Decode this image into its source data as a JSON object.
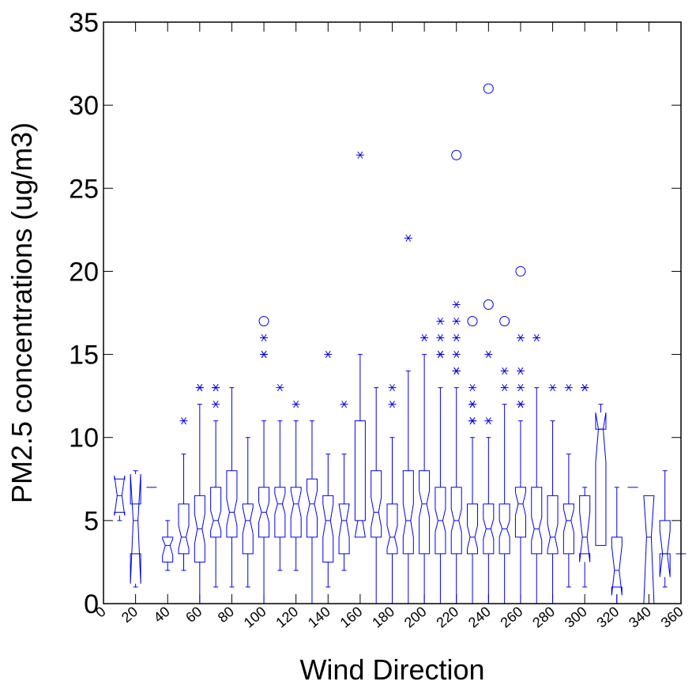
{
  "chart_data": {
    "type": "box",
    "xlabel": "Wind Direction",
    "ylabel": "PM2.5 concentrations (ug/m3)",
    "xlim": [
      0,
      360
    ],
    "ylim": [
      0,
      35
    ],
    "xticks": [
      0,
      20,
      40,
      60,
      80,
      100,
      120,
      140,
      160,
      180,
      200,
      220,
      240,
      260,
      280,
      300,
      320,
      340,
      360
    ],
    "xtick_labels": [
      "0",
      "20",
      "40",
      "60",
      "80",
      "100",
      "120",
      "140",
      "160",
      "180",
      "200",
      "220",
      "240",
      "260",
      "280",
      "300",
      "320",
      "340",
      "360"
    ],
    "yticks": [
      0,
      5,
      10,
      15,
      20,
      25,
      30,
      35
    ],
    "ytick_labels": [
      "0",
      "5",
      "10",
      "15",
      "20",
      "25",
      "30",
      "35"
    ],
    "color": "#0000ee",
    "notched": true,
    "boxes": [
      {
        "x": 10,
        "q1": 5.5,
        "median": 6.5,
        "q3": 7.5,
        "notch_lo": 5.3,
        "notch_hi": 7.7,
        "whisker_lo": 5,
        "whisker_hi": 7.5,
        "outliers": [],
        "extremes": []
      },
      {
        "x": 20,
        "q1": 3,
        "median": 5,
        "q3": 6,
        "notch_lo": 1.2,
        "notch_hi": 7.8,
        "whisker_lo": 1,
        "whisker_hi": 8,
        "outliers": [],
        "extremes": []
      },
      {
        "x": 30,
        "q1": 7,
        "median": 7,
        "q3": 7,
        "notch_lo": 7,
        "notch_hi": 7,
        "whisker_lo": 7,
        "whisker_hi": 7,
        "outliers": [],
        "extremes": []
      },
      {
        "x": 40,
        "q1": 2.5,
        "median": 3.5,
        "q3": 4,
        "notch_lo": 2.9,
        "notch_hi": 3.9,
        "whisker_lo": 2,
        "whisker_hi": 5,
        "outliers": [],
        "extremes": []
      },
      {
        "x": 50,
        "q1": 3,
        "median": 4,
        "q3": 6,
        "notch_lo": 3.3,
        "notch_hi": 4.7,
        "whisker_lo": 2,
        "whisker_hi": 9,
        "outliers": [
          11
        ],
        "extremes": []
      },
      {
        "x": 60,
        "q1": 2.5,
        "median": 4.5,
        "q3": 6.5,
        "notch_lo": 3.6,
        "notch_hi": 5.4,
        "whisker_lo": 0,
        "whisker_hi": 12,
        "outliers": [
          13,
          13
        ],
        "extremes": []
      },
      {
        "x": 70,
        "q1": 4,
        "median": 5,
        "q3": 7,
        "notch_lo": 4.4,
        "notch_hi": 5.6,
        "whisker_lo": 1,
        "whisker_hi": 11,
        "outliers": [
          12,
          13,
          13
        ],
        "extremes": []
      },
      {
        "x": 80,
        "q1": 4,
        "median": 5.5,
        "q3": 8,
        "notch_lo": 4.7,
        "notch_hi": 6.3,
        "whisker_lo": 1,
        "whisker_hi": 13,
        "outliers": [],
        "extremes": []
      },
      {
        "x": 90,
        "q1": 3,
        "median": 5,
        "q3": 6,
        "notch_lo": 4.2,
        "notch_hi": 5.8,
        "whisker_lo": 1,
        "whisker_hi": 10,
        "outliers": [],
        "extremes": []
      },
      {
        "x": 100,
        "q1": 4,
        "median": 5.5,
        "q3": 7,
        "notch_lo": 4.9,
        "notch_hi": 6.1,
        "whisker_lo": 0,
        "whisker_hi": 11,
        "outliers": [
          15,
          15,
          16
        ],
        "extremes": [
          17
        ]
      },
      {
        "x": 110,
        "q1": 4,
        "median": 6,
        "q3": 7,
        "notch_lo": 5.4,
        "notch_hi": 6.6,
        "whisker_lo": 2,
        "whisker_hi": 11,
        "outliers": [
          13
        ],
        "extremes": []
      },
      {
        "x": 120,
        "q1": 4,
        "median": 6,
        "q3": 7,
        "notch_lo": 5.2,
        "notch_hi": 6.8,
        "whisker_lo": 2,
        "whisker_hi": 11,
        "outliers": [
          12
        ],
        "extremes": []
      },
      {
        "x": 130,
        "q1": 4,
        "median": 6,
        "q3": 7.5,
        "notch_lo": 5.2,
        "notch_hi": 6.8,
        "whisker_lo": 0,
        "whisker_hi": 11,
        "outliers": [],
        "extremes": []
      },
      {
        "x": 140,
        "q1": 2.5,
        "median": 5,
        "q3": 6.5,
        "notch_lo": 4,
        "notch_hi": 6,
        "whisker_lo": 1,
        "whisker_hi": 9,
        "outliers": [
          15
        ],
        "extremes": []
      },
      {
        "x": 150,
        "q1": 3,
        "median": 5,
        "q3": 6,
        "notch_lo": 4,
        "notch_hi": 6,
        "whisker_lo": 2,
        "whisker_hi": 9,
        "outliers": [
          12
        ],
        "extremes": []
      },
      {
        "x": 160,
        "q1": 4,
        "median": 5,
        "q3": 11,
        "notch_lo": 4,
        "notch_hi": 5,
        "whisker_lo": 4,
        "whisker_hi": 15,
        "outliers": [
          27
        ],
        "extremes": []
      },
      {
        "x": 170,
        "q1": 4,
        "median": 5.5,
        "q3": 8,
        "notch_lo": 4.6,
        "notch_hi": 6.4,
        "whisker_lo": 0,
        "whisker_hi": 13,
        "outliers": [],
        "extremes": []
      },
      {
        "x": 180,
        "q1": 3,
        "median": 4,
        "q3": 6,
        "notch_lo": 3.3,
        "notch_hi": 4.7,
        "whisker_lo": 0,
        "whisker_hi": 10,
        "outliers": [
          12,
          13
        ],
        "extremes": []
      },
      {
        "x": 190,
        "q1": 3,
        "median": 5,
        "q3": 8,
        "notch_lo": 4,
        "notch_hi": 6,
        "whisker_lo": 0,
        "whisker_hi": 14,
        "outliers": [
          22
        ],
        "extremes": []
      },
      {
        "x": 200,
        "q1": 3,
        "median": 6,
        "q3": 8,
        "notch_lo": 5.2,
        "notch_hi": 6.8,
        "whisker_lo": 0,
        "whisker_hi": 15,
        "outliers": [
          16
        ],
        "extremes": []
      },
      {
        "x": 210,
        "q1": 3,
        "median": 5,
        "q3": 7,
        "notch_lo": 4.3,
        "notch_hi": 5.7,
        "whisker_lo": 0,
        "whisker_hi": 13,
        "outliers": [
          15,
          15,
          16,
          17
        ],
        "extremes": []
      },
      {
        "x": 220,
        "q1": 3,
        "median": 5,
        "q3": 7,
        "notch_lo": 4.3,
        "notch_hi": 5.7,
        "whisker_lo": 0,
        "whisker_hi": 13,
        "outliers": [
          14,
          14,
          15,
          16,
          17,
          18
        ],
        "extremes": [
          27
        ]
      },
      {
        "x": 230,
        "q1": 3,
        "median": 4,
        "q3": 6,
        "notch_lo": 3.3,
        "notch_hi": 4.7,
        "whisker_lo": 0,
        "whisker_hi": 10,
        "outliers": [
          11,
          11,
          12,
          12,
          13
        ],
        "extremes": [
          17
        ]
      },
      {
        "x": 240,
        "q1": 3,
        "median": 4.5,
        "q3": 6,
        "notch_lo": 3.9,
        "notch_hi": 5.1,
        "whisker_lo": 0,
        "whisker_hi": 10,
        "outliers": [
          11,
          15
        ],
        "extremes": [
          18,
          31
        ]
      },
      {
        "x": 250,
        "q1": 3,
        "median": 4.5,
        "q3": 6,
        "notch_lo": 4,
        "notch_hi": 5,
        "whisker_lo": 0,
        "whisker_hi": 12,
        "outliers": [
          13,
          14
        ],
        "extremes": [
          17
        ]
      },
      {
        "x": 260,
        "q1": 4,
        "median": 6,
        "q3": 7,
        "notch_lo": 5.3,
        "notch_hi": 6.7,
        "whisker_lo": 0,
        "whisker_hi": 11,
        "outliers": [
          12,
          12,
          13,
          14,
          16
        ],
        "extremes": [
          20
        ]
      },
      {
        "x": 270,
        "q1": 3,
        "median": 4.5,
        "q3": 7,
        "notch_lo": 3.8,
        "notch_hi": 5.2,
        "whisker_lo": 0,
        "whisker_hi": 13,
        "outliers": [
          16
        ],
        "extremes": []
      },
      {
        "x": 280,
        "q1": 3,
        "median": 4,
        "q3": 6.5,
        "notch_lo": 3.2,
        "notch_hi": 4.8,
        "whisker_lo": 0,
        "whisker_hi": 11,
        "outliers": [
          13
        ],
        "extremes": []
      },
      {
        "x": 290,
        "q1": 3,
        "median": 5,
        "q3": 6,
        "notch_lo": 4.3,
        "notch_hi": 5.7,
        "whisker_lo": 1,
        "whisker_hi": 9,
        "outliers": [
          13
        ],
        "extremes": []
      },
      {
        "x": 300,
        "q1": 3,
        "median": 4,
        "q3": 6.5,
        "notch_lo": 2.5,
        "notch_hi": 5.5,
        "whisker_lo": 1,
        "whisker_hi": 7,
        "outliers": [
          13,
          13
        ],
        "extremes": []
      },
      {
        "x": 310,
        "q1": 3.5,
        "median": 10.5,
        "q3": 10.5,
        "notch_lo": 8.5,
        "notch_hi": 11.5,
        "whisker_lo": 3.5,
        "whisker_hi": 12,
        "outliers": [],
        "extremes": []
      },
      {
        "x": 320,
        "q1": 1,
        "median": 2,
        "q3": 4,
        "notch_lo": 0.5,
        "notch_hi": 3.5,
        "whisker_lo": 0,
        "whisker_hi": 7,
        "outliers": [],
        "extremes": []
      },
      {
        "x": 330,
        "q1": 7,
        "median": 7,
        "q3": 7,
        "notch_lo": 7,
        "notch_hi": 7,
        "whisker_lo": 7,
        "whisker_hi": 7,
        "outliers": [],
        "extremes": []
      },
      {
        "x": 340,
        "q1": 0,
        "median": 4,
        "q3": 6.5,
        "notch_lo": 0,
        "notch_hi": 6.5,
        "whisker_lo": 0,
        "whisker_hi": 6.5,
        "outliers": [],
        "extremes": []
      },
      {
        "x": 350,
        "q1": 3,
        "median": 3,
        "q3": 5,
        "notch_lo": 1.6,
        "notch_hi": 4.4,
        "whisker_lo": 1,
        "whisker_hi": 8,
        "outliers": [],
        "extremes": []
      },
      {
        "x": 360,
        "q1": 3,
        "median": 3,
        "q3": 3,
        "notch_lo": 3,
        "notch_hi": 3,
        "whisker_lo": 3,
        "whisker_hi": 3,
        "outliers": [],
        "extremes": []
      }
    ]
  }
}
